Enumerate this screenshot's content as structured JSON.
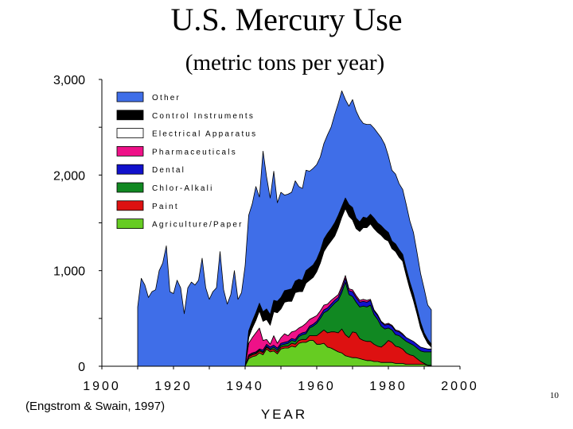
{
  "source_note": "(Engstrom & Swain, 1997)",
  "page_number": "10",
  "chart_data": {
    "type": "area",
    "stacked": true,
    "title": "U.S. Mercury Use",
    "subtitle": "(metric tons per year)",
    "xlabel": "YEAR",
    "ylabel": "",
    "xlim": [
      1900,
      2000
    ],
    "ylim": [
      0,
      3000
    ],
    "x_ticks": [
      "1900",
      "1920",
      "1940",
      "1960",
      "1980",
      "2000"
    ],
    "y_ticks": [
      {
        "value": 0,
        "label": "0"
      },
      {
        "value": 500,
        "label": ""
      },
      {
        "value": 1000,
        "label": "1,000"
      },
      {
        "value": 1500,
        "label": ""
      },
      {
        "value": 2000,
        "label": "2,000"
      },
      {
        "value": 2500,
        "label": ""
      },
      {
        "value": 3000,
        "label": "3,000"
      }
    ],
    "legend_position": "top-left",
    "grid": false,
    "x": [
      1910,
      1911,
      1912,
      1913,
      1914,
      1915,
      1916,
      1917,
      1918,
      1919,
      1920,
      1921,
      1922,
      1923,
      1924,
      1925,
      1926,
      1927,
      1928,
      1929,
      1930,
      1931,
      1932,
      1933,
      1934,
      1935,
      1936,
      1937,
      1938,
      1939,
      1940,
      1941,
      1942,
      1943,
      1944,
      1945,
      1946,
      1947,
      1948,
      1949,
      1950,
      1951,
      1952,
      1953,
      1954,
      1955,
      1956,
      1957,
      1958,
      1959,
      1960,
      1961,
      1962,
      1963,
      1964,
      1965,
      1966,
      1967,
      1968,
      1969,
      1970,
      1971,
      1972,
      1973,
      1974,
      1975,
      1976,
      1977,
      1978,
      1979,
      1980,
      1981,
      1982,
      1983,
      1984,
      1985,
      1986,
      1987,
      1988,
      1989,
      1990,
      1991,
      1992
    ],
    "series": [
      {
        "name": "Agriculture/Paper",
        "color": "#66cc22",
        "values": [
          0,
          0,
          0,
          0,
          0,
          0,
          0,
          0,
          0,
          0,
          0,
          0,
          0,
          0,
          0,
          0,
          0,
          0,
          0,
          0,
          0,
          0,
          0,
          0,
          0,
          0,
          0,
          0,
          0,
          0,
          0,
          80,
          100,
          110,
          140,
          120,
          180,
          150,
          160,
          130,
          180,
          190,
          190,
          210,
          200,
          240,
          250,
          250,
          270,
          270,
          230,
          230,
          240,
          200,
          190,
          170,
          150,
          140,
          110,
          100,
          90,
          90,
          80,
          70,
          60,
          60,
          50,
          50,
          40,
          40,
          40,
          40,
          30,
          30,
          30,
          20,
          20,
          20,
          20,
          20,
          20,
          10,
          10
        ]
      },
      {
        "name": "Paint",
        "color": "#dd1111",
        "values": [
          0,
          0,
          0,
          0,
          0,
          0,
          0,
          0,
          0,
          0,
          0,
          0,
          0,
          0,
          0,
          0,
          0,
          0,
          0,
          0,
          0,
          0,
          0,
          0,
          0,
          0,
          0,
          0,
          0,
          0,
          0,
          20,
          20,
          20,
          20,
          20,
          20,
          20,
          20,
          20,
          20,
          20,
          20,
          30,
          30,
          30,
          30,
          30,
          50,
          50,
          90,
          120,
          140,
          150,
          170,
          190,
          200,
          250,
          220,
          200,
          270,
          260,
          210,
          200,
          200,
          200,
          180,
          160,
          160,
          190,
          230,
          210,
          180,
          170,
          150,
          120,
          100,
          90,
          60,
          30,
          10,
          0,
          0
        ]
      },
      {
        "name": "Chlor-Alkali",
        "color": "#118822",
        "values": [
          0,
          0,
          0,
          0,
          0,
          0,
          0,
          0,
          0,
          0,
          0,
          0,
          0,
          0,
          0,
          0,
          0,
          0,
          0,
          0,
          0,
          0,
          0,
          0,
          0,
          0,
          0,
          0,
          0,
          0,
          0,
          10,
          10,
          10,
          10,
          10,
          10,
          10,
          20,
          20,
          20,
          20,
          30,
          30,
          30,
          40,
          50,
          60,
          80,
          100,
          130,
          150,
          180,
          230,
          260,
          300,
          340,
          380,
          550,
          450,
          370,
          320,
          330,
          360,
          360,
          380,
          310,
          280,
          220,
          160,
          130,
          130,
          120,
          120,
          110,
          120,
          120,
          110,
          110,
          110,
          120,
          140,
          140
        ]
      },
      {
        "name": "Dental",
        "color": "#1111cc",
        "values": [
          0,
          0,
          0,
          0,
          0,
          0,
          0,
          0,
          0,
          0,
          0,
          0,
          0,
          0,
          0,
          0,
          0,
          0,
          0,
          0,
          0,
          0,
          0,
          0,
          0,
          0,
          0,
          0,
          0,
          0,
          0,
          10,
          10,
          10,
          10,
          20,
          20,
          20,
          20,
          20,
          20,
          20,
          20,
          20,
          20,
          20,
          20,
          20,
          20,
          20,
          20,
          30,
          30,
          30,
          30,
          30,
          30,
          40,
          40,
          40,
          50,
          50,
          50,
          50,
          50,
          50,
          40,
          40,
          40,
          40,
          40,
          40,
          40,
          40,
          40,
          40,
          40,
          40,
          40,
          40,
          40,
          30,
          30
        ]
      },
      {
        "name": "Pharmaceuticals",
        "color": "#ee1188",
        "values": [
          0,
          0,
          0,
          0,
          0,
          0,
          0,
          0,
          0,
          0,
          0,
          0,
          0,
          0,
          0,
          0,
          0,
          0,
          0,
          0,
          0,
          0,
          0,
          0,
          0,
          0,
          0,
          0,
          0,
          0,
          0,
          120,
          160,
          200,
          220,
          100,
          50,
          30,
          100,
          50,
          60,
          90,
          60,
          70,
          90,
          70,
          70,
          90,
          70,
          70,
          60,
          50,
          50,
          40,
          40,
          30,
          30,
          30,
          30,
          20,
          20,
          20,
          20,
          20,
          20,
          10,
          10,
          10,
          10,
          10,
          10,
          10,
          10,
          10,
          10,
          0,
          0,
          0,
          0,
          0,
          0,
          0,
          0
        ]
      },
      {
        "name": "Electrical Apparatus",
        "color": "#ffffff",
        "values": [
          0,
          0,
          0,
          0,
          0,
          0,
          0,
          0,
          0,
          0,
          0,
          0,
          0,
          0,
          0,
          0,
          0,
          0,
          0,
          0,
          0,
          0,
          0,
          0,
          0,
          0,
          0,
          0,
          0,
          0,
          0,
          60,
          100,
          130,
          180,
          200,
          210,
          200,
          250,
          320,
          300,
          330,
          360,
          320,
          400,
          380,
          360,
          420,
          410,
          420,
          460,
          500,
          560,
          610,
          620,
          640,
          700,
          720,
          700,
          760,
          730,
          700,
          720,
          750,
          760,
          790,
          850,
          860,
          900,
          890,
          860,
          800,
          820,
          770,
          760,
          650,
          530,
          430,
          320,
          200,
          120,
          60,
          20
        ]
      },
      {
        "name": "Control Instruments",
        "color": "#000000",
        "values": [
          0,
          0,
          0,
          0,
          0,
          0,
          0,
          0,
          0,
          0,
          0,
          0,
          0,
          0,
          0,
          0,
          0,
          0,
          0,
          0,
          0,
          0,
          0,
          0,
          0,
          0,
          0,
          0,
          0,
          0,
          0,
          70,
          70,
          80,
          80,
          100,
          110,
          110,
          120,
          120,
          120,
          120,
          120,
          130,
          120,
          130,
          120,
          130,
          130,
          130,
          130,
          130,
          130,
          130,
          130,
          140,
          130,
          110,
          110,
          120,
          130,
          110,
          100,
          110,
          100,
          100,
          110,
          100,
          100,
          100,
          90,
          80,
          80,
          80,
          70,
          70,
          70,
          70,
          60,
          60,
          40,
          40,
          30
        ]
      },
      {
        "name": "Other",
        "color": "#3f6ee8",
        "values": [
          620,
          920,
          850,
          720,
          780,
          800,
          1000,
          1080,
          1260,
          780,
          760,
          900,
          820,
          550,
          820,
          880,
          850,
          900,
          1130,
          820,
          700,
          780,
          820,
          1200,
          800,
          650,
          750,
          1000,
          700,
          770,
          1050,
          1210,
          1230,
          1320,
          1110,
          1680,
          1380,
          1220,
          1350,
          1030,
          1100,
          1000,
          1000,
          1010,
          1050,
          970,
          960,
          1050,
          1010,
          1010,
          990,
          980,
          1000,
          1030,
          1060,
          1130,
          1170,
          1210,
          1030,
          1030,
          1130,
          1120,
          1080,
          980,
          980,
          940,
          940,
          940,
          920,
          890,
          800,
          740,
          730,
          690,
          680,
          670,
          640,
          640,
          580,
          510,
          460,
          360,
          360
        ]
      }
    ]
  }
}
